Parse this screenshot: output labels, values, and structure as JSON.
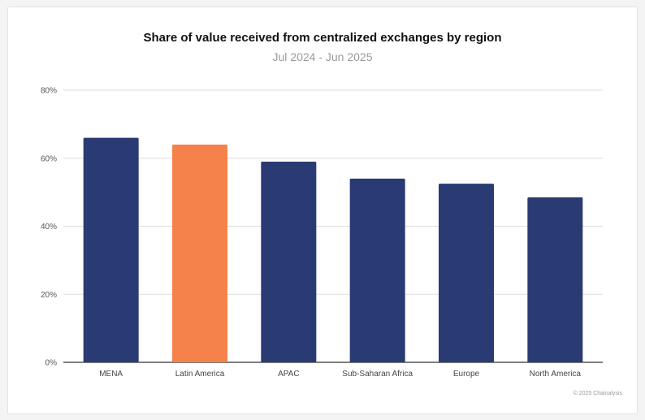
{
  "chart_data": {
    "type": "bar",
    "title": "Share of value received from centralized exchanges by region",
    "subtitle": "Jul 2024 - Jun 2025",
    "categories": [
      "MENA",
      "Latin America",
      "APAC",
      "Sub-Saharan Africa",
      "Europe",
      "North America"
    ],
    "values": [
      66,
      64,
      59,
      54,
      52.5,
      48.5
    ],
    "highlight": "Latin America",
    "colors": {
      "default": "#2a3a73",
      "highlight": "#f5824a"
    },
    "yticks": [
      "0%",
      "20%",
      "40%",
      "60%",
      "80%"
    ],
    "ylim": [
      0,
      80
    ],
    "grid": true,
    "xlabel": "",
    "ylabel": ""
  },
  "credit": "© 2025 Chainalysis"
}
